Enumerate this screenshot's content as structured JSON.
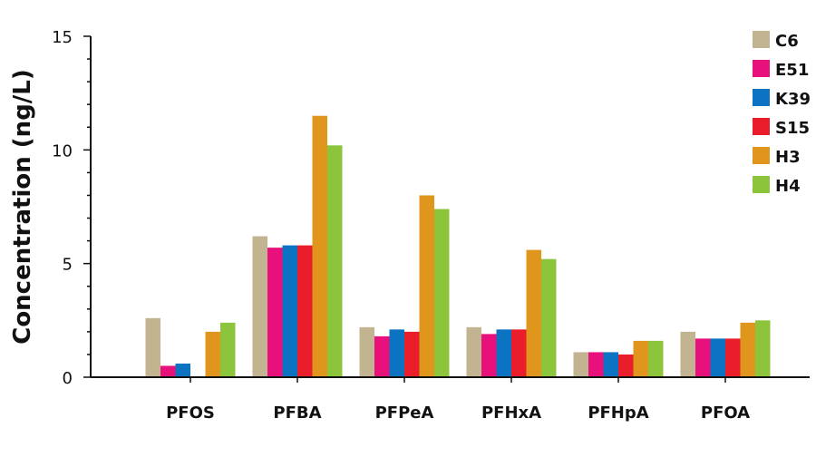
{
  "chart_data": {
    "type": "bar",
    "title": "",
    "xlabel": "",
    "ylabel": "Concentration (ng/L)",
    "ylim": [
      0,
      15
    ],
    "yticks": [
      0,
      5,
      10,
      15
    ],
    "grid": false,
    "legend_position": "top-right",
    "categories": [
      "PFOS",
      "PFBA",
      "PFPeA",
      "PFHxA",
      "PFHpA",
      "PFOA"
    ],
    "series": [
      {
        "name": "C6",
        "color": "#c2b391",
        "values": [
          2.6,
          6.2,
          2.2,
          2.2,
          1.1,
          2.0
        ]
      },
      {
        "name": "E51",
        "color": "#e8117c",
        "values": [
          0.5,
          5.7,
          1.8,
          1.9,
          1.1,
          1.7
        ]
      },
      {
        "name": "K39",
        "color": "#0c72c2",
        "values": [
          0.6,
          5.8,
          2.1,
          2.1,
          1.1,
          1.7
        ]
      },
      {
        "name": "S15",
        "color": "#ea1d2a",
        "values": [
          0,
          5.8,
          2.0,
          2.1,
          1.0,
          1.7
        ]
      },
      {
        "name": "H3",
        "color": "#e0961c",
        "values": [
          2.0,
          11.5,
          8.0,
          5.6,
          1.6,
          2.4
        ]
      },
      {
        "name": "H4",
        "color": "#8cc43c",
        "values": [
          2.4,
          10.2,
          7.4,
          5.2,
          1.6,
          2.5
        ]
      }
    ]
  }
}
